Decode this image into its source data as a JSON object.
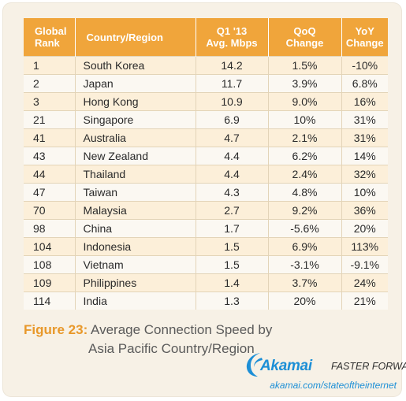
{
  "chart_data": {
    "type": "table",
    "columns": [
      "Global Rank",
      "Country/Region",
      "Q1 '13 Avg. Mbps",
      "QoQ Change",
      "YoY Change"
    ],
    "header_lines": [
      [
        "Global",
        "Rank"
      ],
      [
        "Country/Region"
      ],
      [
        "Q1 '13",
        "Avg. Mbps"
      ],
      [
        "QoQ",
        "Change"
      ],
      [
        "YoY",
        "Change"
      ]
    ],
    "rows": [
      [
        "1",
        "South Korea",
        "14.2",
        "1.5%",
        "-10%"
      ],
      [
        "2",
        "Japan",
        "11.7",
        "3.9%",
        "6.8%"
      ],
      [
        "3",
        "Hong Kong",
        "10.9",
        "9.0%",
        "16%"
      ],
      [
        "21",
        "Singapore",
        "6.9",
        "10%",
        "31%"
      ],
      [
        "41",
        "Australia",
        "4.7",
        "2.1%",
        "31%"
      ],
      [
        "43",
        "New Zealand",
        "4.4",
        "6.2%",
        "14%"
      ],
      [
        "44",
        "Thailand",
        "4.4",
        "2.4%",
        "32%"
      ],
      [
        "47",
        "Taiwan",
        "4.3",
        "4.8%",
        "10%"
      ],
      [
        "70",
        "Malaysia",
        "2.7",
        "9.2%",
        "36%"
      ],
      [
        "98",
        "China",
        "1.7",
        "-5.6%",
        "20%"
      ],
      [
        "104",
        "Indonesia",
        "1.5",
        "6.9%",
        "113%"
      ],
      [
        "108",
        "Vietnam",
        "1.5",
        "-3.1%",
        "-9.1%"
      ],
      [
        "109",
        "Philippines",
        "1.4",
        "3.7%",
        "24%"
      ],
      [
        "114",
        "India",
        "1.3",
        "20%",
        "21%"
      ]
    ]
  },
  "caption": {
    "label": "Figure 23:",
    "line1": "Average Connection Speed by",
    "line2": "Asia Pacific Country/Region"
  },
  "branding": {
    "logo_text": "Akamai",
    "tagline": "FASTER FORWARD",
    "url": "akamai.com/stateoftheinternet",
    "logo_icon": "akamai-wave-icon"
  },
  "colors": {
    "header_bg": "#f0a53b",
    "row_odd": "#fcefd9",
    "row_even": "#fbf8f2",
    "accent_orange": "#e8982a",
    "brand_blue": "#1d8fd6"
  }
}
